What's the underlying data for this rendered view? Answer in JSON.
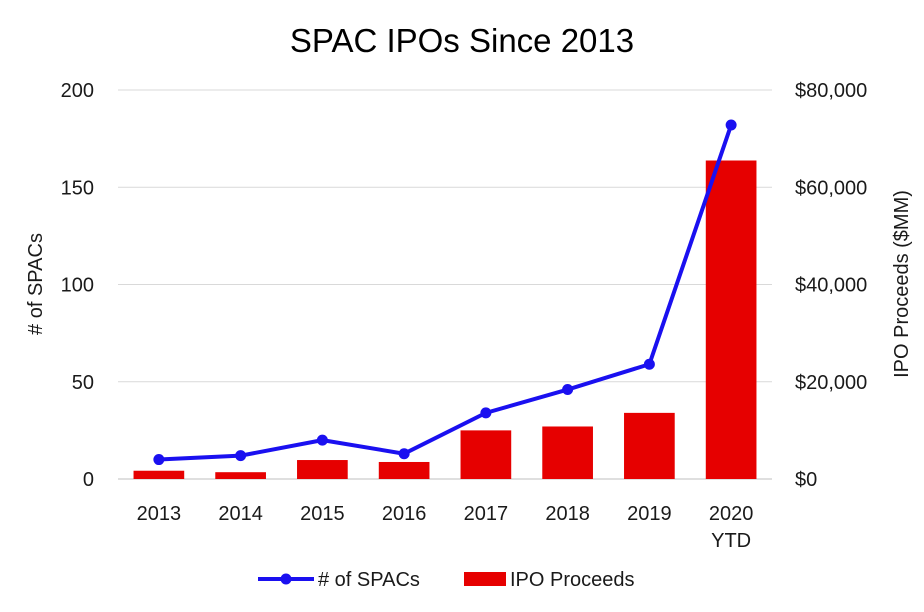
{
  "chart_data": {
    "type": "bar+line",
    "title": "SPAC IPOs Since 2013",
    "categories": [
      "2013",
      "2014",
      "2015",
      "2016",
      "2017",
      "2018",
      "2019",
      "2020\nYTD"
    ],
    "series": [
      {
        "name": "# of SPACs",
        "type": "line",
        "axis": "left",
        "color": "#1a10f0",
        "values": [
          10,
          12,
          20,
          13,
          34,
          46,
          59,
          182
        ]
      },
      {
        "name": "IPO Proceeds",
        "type": "bar",
        "axis": "right",
        "color": "#e60000",
        "values": [
          1700,
          1400,
          3900,
          3500,
          10000,
          10800,
          13600,
          65500
        ]
      }
    ],
    "left_axis": {
      "label": "# of SPACs",
      "ylim": [
        0,
        200
      ],
      "ticks": [
        "0",
        "50",
        "100",
        "150",
        "200"
      ]
    },
    "right_axis": {
      "label": "IPO Proceeds ($MM)",
      "ylim": [
        0,
        80000
      ],
      "ticks": [
        "$0",
        "$20,000",
        "$40,000",
        "$60,000",
        "$80,000"
      ]
    },
    "grid": "horizontal",
    "legend_position": "bottom"
  }
}
